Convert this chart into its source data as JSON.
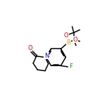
{
  "background_color": "#ffffff",
  "bond_color": "#000000",
  "atom_colors": {
    "B": "#d4a000",
    "O": "#dd0000",
    "N": "#0000cc",
    "F": "#009900",
    "C": "#000000"
  },
  "figsize": [
    1.52,
    1.52
  ],
  "dpi": 100,
  "lw": 1.1,
  "fontsize": 6.0
}
